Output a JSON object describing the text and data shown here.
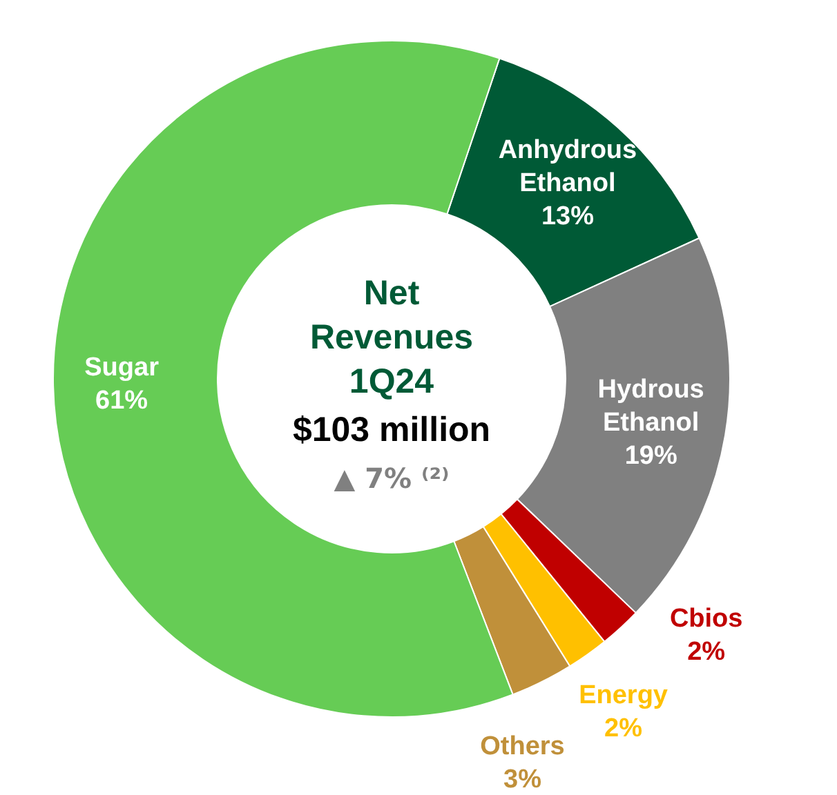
{
  "chart_data": {
    "type": "donut",
    "title": "Net Revenues 1Q24",
    "subtitle": "$103 million",
    "annotations": [
      "▲ 7% ⁽²⁾"
    ],
    "categories": [
      "Anhydrous Ethanol",
      "Hydrous Ethanol",
      "Cbios",
      "Energy",
      "Others",
      "Sugar"
    ],
    "values": [
      13,
      19,
      2,
      2,
      3,
      61
    ],
    "colors": [
      "#005a36",
      "#808080",
      "#c00000",
      "#ffc000",
      "#c0903a",
      "#66cc55"
    ],
    "value_labels": [
      "13%",
      "19%",
      "2%",
      "2%",
      "3%",
      "61%"
    ]
  }
}
